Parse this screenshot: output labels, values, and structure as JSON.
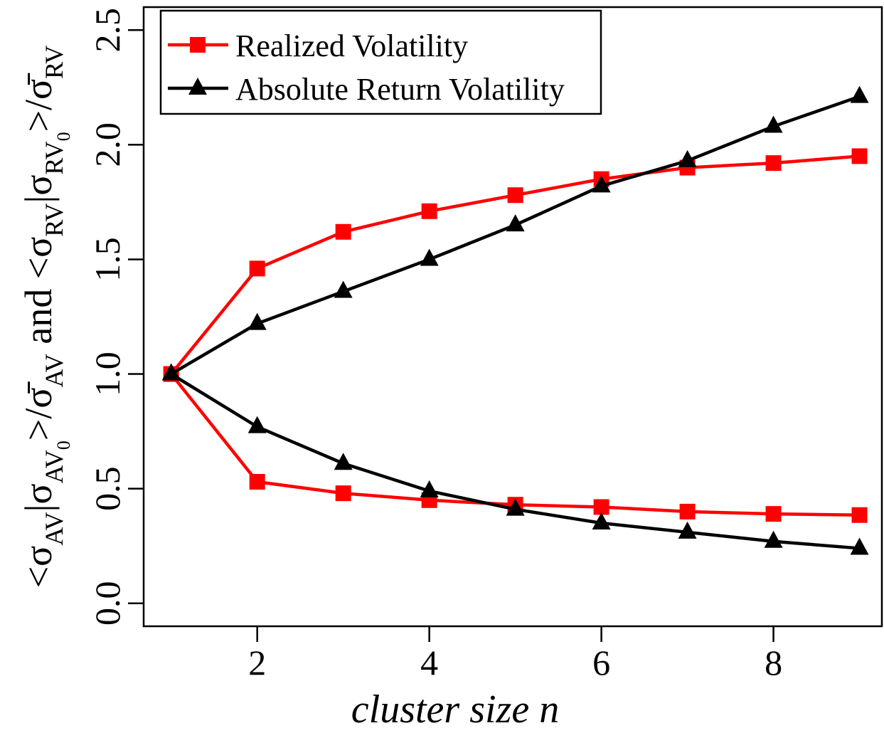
{
  "chart_data": {
    "type": "line",
    "xlabel": "cluster size n",
    "ylabel": [
      {
        "text": "<σ"
      },
      {
        "text": "AV",
        "sub": 1
      },
      {
        "text": "|σ"
      },
      {
        "text": "AV",
        "sub": 1
      },
      {
        "text": "0",
        "sub": 2
      },
      {
        "text": ">/σ̄"
      },
      {
        "text": "AV",
        "sub": 1
      },
      {
        "text": "  and  <σ"
      },
      {
        "text": "RV",
        "sub": 1
      },
      {
        "text": "|σ"
      },
      {
        "text": "RV",
        "sub": 1
      },
      {
        "text": "0",
        "sub": 2
      },
      {
        "text": ">/σ̄"
      },
      {
        "text": "RV",
        "sub": 1
      }
    ],
    "x": [
      1,
      2,
      3,
      4,
      5,
      6,
      7,
      8,
      9
    ],
    "xlim": [
      0.68,
      9.26
    ],
    "xticks": [
      2,
      4,
      6,
      8
    ],
    "ylim": [
      -0.1,
      2.6
    ],
    "yticks": [
      {
        "value": 0,
        "label": "0.0"
      },
      0.5,
      {
        "value": 1,
        "label": "1.0"
      },
      1.5,
      {
        "value": 2,
        "label": "2.0"
      },
      2.5
    ],
    "legend": "top-left",
    "series": [
      {
        "name": "Realized Volatility",
        "color": "#ff0000",
        "marker": "square",
        "lines": [
          [
            1.0,
            1.46,
            1.62,
            1.71,
            1.78,
            1.85,
            1.9,
            1.92,
            1.95
          ],
          [
            1.0,
            0.53,
            0.48,
            0.45,
            0.43,
            0.42,
            0.4,
            0.39,
            0.385
          ]
        ]
      },
      {
        "name": "Absolute Return Volatility",
        "color": "#000000",
        "marker": "triangle",
        "lines": [
          [
            1.0,
            1.22,
            1.36,
            1.5,
            1.65,
            1.82,
            1.93,
            2.08,
            2.21
          ],
          [
            1.0,
            0.77,
            0.61,
            0.49,
            0.41,
            0.35,
            0.31,
            0.27,
            0.24
          ]
        ]
      }
    ]
  }
}
